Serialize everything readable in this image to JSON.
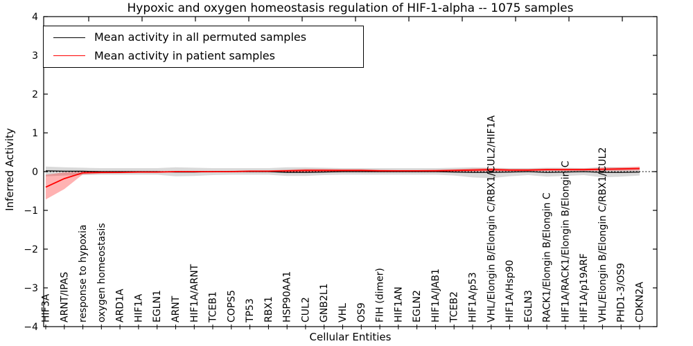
{
  "chart_data": {
    "type": "line",
    "title": "Hypoxic and oxygen homeostasis regulation of HIF-1-alpha -- 1075 samples",
    "xlabel": "Cellular Entities",
    "ylabel": "Inferred Activity",
    "ylim": [
      -4,
      4
    ],
    "yticks": [
      -4,
      -3,
      -2,
      -1,
      0,
      1,
      2,
      3,
      4
    ],
    "grid": false,
    "legend_position": "upper left",
    "zero_line": {
      "y": 0,
      "style": "dotted",
      "color": "#000000"
    },
    "categories": [
      "HIF3A",
      "ARNT/IPAS",
      "response to hypoxia",
      "oxygen homeostasis",
      "ARD1A",
      "HIF1A",
      "EGLN1",
      "ARNT",
      "HIF1A/ARNT",
      "TCEB1",
      "COPS5",
      "TP53",
      "RBX1",
      "HSP90AA1",
      "CUL2",
      "GNB2L1",
      "VHL",
      "OS9",
      "FIH (dimer)",
      "HIF1AN",
      "EGLN2",
      "HIF1A/JAB1",
      "TCEB2",
      "HIF1A/p53",
      "VHL/Elongin B/Elongin C/RBX1/CUL2/HIF1A",
      "HIF1A/Hsp90",
      "EGLN3",
      "RACK1/Elongin B/Elongin C",
      "HIF1A/RACK1/Elongin B/Elongin C",
      "HIF1A/p19ARF",
      "VHL/Elongin B/Elongin C/RBX1/CUL2",
      "PHD1-3/OS9",
      "CDKN2A"
    ],
    "series": [
      {
        "name": "Mean activity in all permuted samples",
        "color": "#000000",
        "band_color": "rgba(0,0,0,0.15)",
        "values": [
          0.02,
          0.01,
          0.01,
          0.0,
          0.0,
          0.0,
          0.0,
          -0.01,
          -0.01,
          0.0,
          0.0,
          0.0,
          0.0,
          -0.02,
          -0.02,
          -0.01,
          0.0,
          0.0,
          0.0,
          0.0,
          0.0,
          0.0,
          -0.01,
          -0.02,
          -0.02,
          -0.01,
          0.0,
          -0.02,
          -0.01,
          0.0,
          -0.02,
          -0.02,
          -0.01
        ],
        "band_upper": [
          0.13,
          0.11,
          0.1,
          0.09,
          0.09,
          0.09,
          0.09,
          0.11,
          0.1,
          0.09,
          0.09,
          0.09,
          0.09,
          0.11,
          0.11,
          0.1,
          0.09,
          0.09,
          0.09,
          0.09,
          0.09,
          0.09,
          0.1,
          0.11,
          0.1,
          0.09,
          0.09,
          0.1,
          0.1,
          0.09,
          0.12,
          0.11,
          0.1
        ],
        "band_lower": [
          -0.12,
          -0.1,
          -0.09,
          -0.08,
          -0.08,
          -0.08,
          -0.08,
          -0.12,
          -0.11,
          -0.09,
          -0.08,
          -0.08,
          -0.08,
          -0.11,
          -0.11,
          -0.09,
          -0.08,
          -0.08,
          -0.08,
          -0.08,
          -0.08,
          -0.08,
          -0.1,
          -0.15,
          -0.17,
          -0.12,
          -0.09,
          -0.13,
          -0.11,
          -0.09,
          -0.15,
          -0.13,
          -0.1
        ]
      },
      {
        "name": "Mean activity in patient samples",
        "color": "#ff0000",
        "band_color": "rgba(255,0,0,0.30)",
        "values": [
          -0.4,
          -0.18,
          -0.03,
          -0.02,
          -0.02,
          -0.01,
          -0.01,
          0.0,
          0.0,
          0.0,
          0.0,
          0.01,
          0.01,
          0.02,
          0.03,
          0.03,
          0.03,
          0.03,
          0.02,
          0.02,
          0.02,
          0.02,
          0.03,
          0.04,
          0.05,
          0.04,
          0.04,
          0.05,
          0.05,
          0.05,
          0.06,
          0.07,
          0.08
        ],
        "band_upper": [
          -0.08,
          -0.02,
          0.0,
          0.0,
          0.0,
          0.01,
          0.01,
          0.01,
          0.01,
          0.01,
          0.02,
          0.03,
          0.03,
          0.05,
          0.07,
          0.07,
          0.06,
          0.06,
          0.05,
          0.04,
          0.04,
          0.05,
          0.06,
          0.08,
          0.09,
          0.07,
          0.07,
          0.08,
          0.08,
          0.08,
          0.1,
          0.11,
          0.13
        ],
        "band_lower": [
          -0.72,
          -0.45,
          -0.07,
          -0.05,
          -0.04,
          -0.03,
          -0.03,
          -0.02,
          -0.02,
          -0.02,
          -0.01,
          -0.01,
          -0.01,
          -0.01,
          -0.02,
          -0.01,
          -0.01,
          0.0,
          -0.01,
          -0.01,
          0.0,
          0.0,
          0.0,
          0.0,
          0.01,
          0.01,
          0.01,
          0.02,
          0.02,
          0.02,
          0.02,
          0.02,
          0.03
        ]
      }
    ]
  }
}
